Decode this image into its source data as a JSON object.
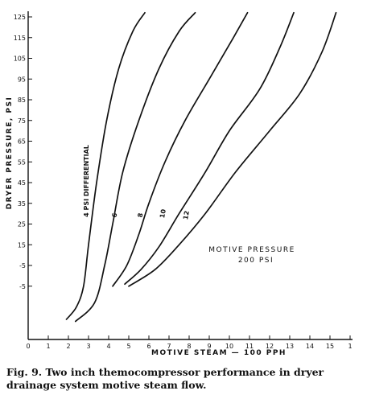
{
  "chart_data": {
    "type": "line",
    "xlabel": "MOTIVE STEAM — 100 PPH",
    "ylabel": "DRYER PRESSURE, PSI",
    "xlim": [
      0,
      16
    ],
    "ylim": [
      -45,
      127
    ],
    "x_ticks": [
      "0",
      "1",
      "2",
      "3",
      "4",
      "5",
      "6",
      "7",
      "8",
      "9",
      "10",
      "11",
      "12",
      "13",
      "14",
      "15",
      "1"
    ],
    "y_ticks": [
      "125",
      "115",
      "105",
      "95",
      "85",
      "75",
      "65",
      "55",
      "45",
      "35",
      "25",
      "15",
      "-5",
      "-5"
    ],
    "grid": false,
    "series": [
      {
        "name": "4 PSI DIFFERENTIAL",
        "x": [
          1.9,
          2.4,
          2.75,
          3.0,
          3.4,
          3.9,
          4.5,
          5.2,
          5.8
        ],
        "y": [
          -21,
          -15,
          -5,
          15,
          45,
          75,
          100,
          118,
          127
        ]
      },
      {
        "name": "6",
        "x": [
          2.35,
          3.3,
          3.8,
          4.2,
          4.7,
          5.5,
          6.5,
          7.5,
          8.3
        ],
        "y": [
          -22,
          -13,
          5,
          25,
          50,
          75,
          100,
          118,
          127
        ]
      },
      {
        "name": "8",
        "x": [
          4.2,
          4.9,
          5.5,
          6.0,
          6.8,
          7.8,
          9.0,
          10.2,
          10.9
        ],
        "y": [
          -5,
          5,
          20,
          35,
          55,
          75,
          95,
          115,
          127
        ]
      },
      {
        "name": "10",
        "x": [
          4.8,
          5.6,
          6.5,
          7.5,
          8.8,
          10.0,
          11.5,
          12.5,
          13.2
        ],
        "y": [
          -4,
          3,
          14,
          30,
          50,
          70,
          90,
          110,
          127
        ]
      },
      {
        "name": "12",
        "x": [
          5.0,
          6.3,
          7.5,
          8.8,
          10.3,
          12.0,
          13.5,
          14.6,
          15.3
        ],
        "y": [
          -5,
          3,
          15,
          30,
          50,
          70,
          88,
          108,
          127
        ]
      }
    ],
    "curve_labels": [
      "4 PSI DIFFERENTIAL",
      "6",
      "8",
      "10",
      "12"
    ],
    "annotation": [
      "MOTIVE PRESSURE",
      "200 PSI"
    ]
  },
  "caption": "Fig. 9. Two inch themocompressor performance in dryer drainage system motive steam flow."
}
